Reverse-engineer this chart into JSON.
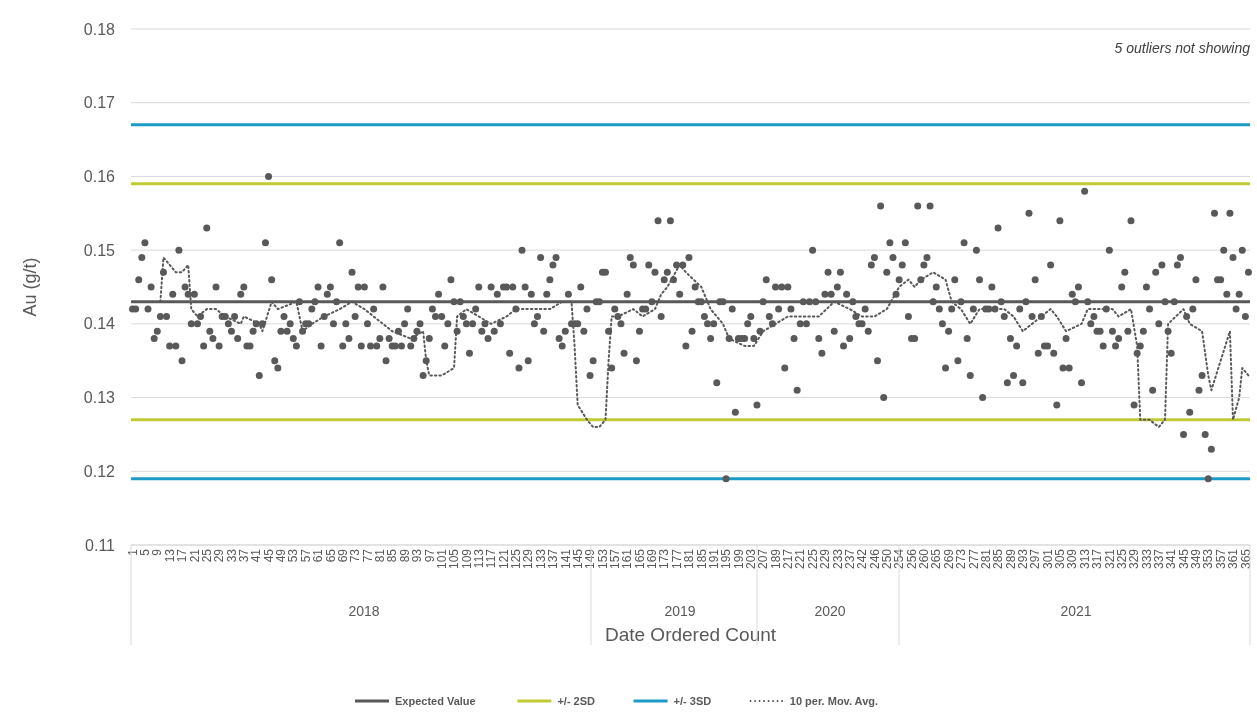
{
  "chart_data": {
    "type": "scatter",
    "xlabel": "Date Ordered Count",
    "ylabel": "Au (g/t)",
    "annotations": [
      "5 outliers not showing",
      "2018",
      "2019",
      "2020",
      "2021"
    ],
    "ylim": [
      0.11,
      0.18
    ],
    "yticks": [
      0.11,
      0.12,
      0.13,
      0.14,
      0.15,
      0.16,
      0.17,
      0.18
    ],
    "grid": "y",
    "legend": "bottom",
    "categories": [
      "1",
      null,
      null,
      null,
      "5",
      null,
      null,
      null,
      "9",
      null,
      null,
      null,
      "13",
      null,
      null,
      null,
      "17",
      null,
      null,
      null,
      "21",
      null,
      null,
      null,
      "25",
      null,
      null,
      null,
      "29",
      null,
      null,
      null,
      "33",
      null,
      null,
      null,
      "37",
      null,
      null,
      null,
      "41",
      null,
      null,
      null,
      "45",
      null,
      null,
      null,
      "49",
      null,
      null,
      null,
      "53",
      null,
      null,
      null,
      "57",
      null,
      null,
      null,
      "61",
      null,
      null,
      null,
      "65",
      null,
      null,
      null,
      "69",
      null,
      null,
      null,
      "73",
      null,
      null,
      null,
      "77",
      null,
      null,
      null,
      "81",
      null,
      null,
      null,
      "85",
      null,
      null,
      null,
      "89",
      null,
      null,
      null,
      "93",
      null,
      null,
      null,
      "97",
      null,
      null,
      null,
      "101",
      null,
      null,
      null,
      "105",
      null,
      null,
      null,
      "109",
      null,
      null,
      null,
      "113",
      null,
      null,
      null,
      "117",
      null,
      null,
      null,
      "121",
      null,
      null,
      null,
      "125",
      null,
      null,
      null,
      "129",
      null,
      null,
      null,
      "133",
      null,
      null,
      null,
      "137",
      null,
      null,
      null,
      "141",
      null,
      null,
      null,
      "145",
      null,
      null,
      null,
      "149",
      null,
      null,
      null,
      "153",
      null,
      null,
      null,
      "157",
      null,
      null,
      null,
      "161",
      null,
      null,
      null,
      "165",
      null,
      null,
      null,
      "169",
      null,
      null,
      null,
      "173",
      null,
      null,
      null,
      "177",
      null,
      null,
      null,
      "181",
      null,
      null,
      null,
      "185",
      null,
      null,
      null,
      "191",
      null,
      null,
      null,
      "195",
      null,
      null,
      null,
      "199",
      null,
      null,
      null,
      "203",
      null,
      null,
      null,
      "207",
      null,
      null,
      null,
      "189",
      null,
      null,
      null,
      "217",
      null,
      null,
      null,
      "221",
      null,
      null,
      null,
      "225",
      null,
      null,
      null,
      "229",
      null,
      null,
      null,
      "233",
      null,
      null,
      null,
      "237",
      null,
      null,
      null,
      "242",
      null,
      null,
      null,
      "246",
      null,
      null,
      null,
      "250",
      null,
      null,
      null,
      "254",
      null,
      null,
      null,
      "256",
      null,
      null,
      null,
      "260",
      null,
      null,
      null,
      "265",
      null,
      null,
      null,
      "269",
      null,
      null,
      null,
      "273",
      null,
      null,
      null,
      "277",
      null,
      null,
      null,
      "281",
      null,
      null,
      null,
      "285",
      null,
      null,
      null,
      "289",
      null,
      null,
      null,
      "293",
      null,
      null,
      null,
      "297",
      null,
      null,
      null,
      "301",
      null,
      null,
      null,
      "305",
      null,
      null,
      null,
      "309",
      null,
      null,
      null,
      "313",
      null,
      null,
      null,
      "317",
      null,
      null,
      null,
      "321",
      null,
      null,
      null,
      "325",
      null,
      null,
      null,
      "329",
      null,
      null,
      null,
      "333",
      null,
      null,
      null,
      "337",
      null,
      null,
      null,
      "341",
      null,
      null,
      null,
      "345",
      null,
      null,
      null,
      "349",
      null,
      null,
      null,
      "353",
      null,
      null,
      null,
      "357",
      null,
      null,
      null,
      "361",
      null,
      null,
      null,
      "365",
      null
    ],
    "ref_lines": [
      {
        "axis": "y",
        "value": 0.143,
        "label": "Expected Value",
        "color": "#595959"
      },
      {
        "axis": "y",
        "value": 0.159,
        "label": "+/- 2SD",
        "color": "#bfca35"
      },
      {
        "axis": "y",
        "value": 0.127,
        "color": "#bfca35"
      },
      {
        "axis": "y",
        "value": 0.167,
        "label": "+/- 3SD",
        "color": "#1d9bc6"
      },
      {
        "axis": "y",
        "value": 0.119,
        "color": "#1d9bc6"
      }
    ],
    "series": [
      {
        "color": "#595959",
        "marker": "circle",
        "values": [
          0.142,
          0.142,
          0.146,
          0.149,
          0.151,
          0.142,
          0.145,
          0.138,
          0.139,
          0.141,
          0.147,
          0.141,
          0.137,
          0.144,
          0.137,
          0.15,
          0.135,
          0.145,
          0.144,
          0.14,
          0.144,
          0.14,
          0.141,
          0.137,
          0.153,
          0.139,
          0.138,
          0.145,
          0.137,
          0.141,
          0.141,
          0.14,
          0.139,
          0.141,
          0.138,
          0.144,
          0.145,
          0.137,
          0.137,
          0.139,
          0.14,
          0.133,
          0.14,
          0.151,
          0.16,
          0.146,
          0.135,
          0.134,
          0.139,
          0.141,
          0.139,
          0.14,
          0.138,
          0.137,
          0.143,
          0.139,
          0.14,
          0.14,
          0.142,
          0.143,
          0.145,
          0.137,
          0.141,
          0.144,
          0.145,
          0.14,
          0.143,
          0.151,
          0.137,
          0.14,
          0.138,
          0.147,
          0.141,
          0.145,
          0.137,
          0.145,
          0.14,
          0.137,
          0.142,
          0.137,
          0.138,
          0.145,
          0.135,
          0.138,
          0.137,
          0.137,
          0.139,
          0.137,
          0.14,
          0.142,
          0.137,
          0.138,
          0.139,
          0.14,
          0.133,
          0.135,
          0.138,
          0.142,
          0.141,
          0.144,
          0.141,
          0.137,
          0.14,
          0.146,
          0.143,
          0.139,
          0.143,
          0.141,
          0.14,
          0.136,
          0.14,
          0.142,
          0.145,
          0.139,
          0.14,
          0.138,
          0.145,
          0.139,
          0.144,
          0.14,
          0.145,
          0.145,
          0.136,
          0.145,
          0.142,
          0.134,
          0.15,
          0.145,
          0.135,
          0.144,
          0.14,
          0.141,
          0.149,
          0.139,
          0.144,
          0.146,
          0.148,
          0.149,
          0.138,
          0.137,
          0.139,
          0.144,
          0.14,
          0.14,
          0.14,
          0.145,
          0.139,
          0.142,
          0.133,
          0.135,
          0.143,
          0.143,
          0.147,
          0.147,
          0.139,
          0.134,
          0.142,
          0.141,
          0.14,
          0.136,
          0.144,
          0.149,
          0.148,
          0.135,
          0.139,
          0.142,
          0.142,
          0.148,
          0.143,
          0.147,
          0.154,
          0.141,
          0.146,
          0.147,
          0.154,
          0.146,
          0.148,
          0.144,
          0.148,
          0.137,
          0.149,
          0.139,
          0.145,
          0.143,
          0.143,
          0.141,
          0.14,
          0.138,
          0.14,
          0.132,
          0.143,
          0.143,
          0.119,
          0.138,
          0.142,
          0.128,
          0.138,
          0.138,
          0.138,
          0.14,
          0.141,
          0.138,
          0.129,
          0.139,
          0.143,
          0.146,
          0.141,
          0.14,
          0.145,
          0.142,
          0.145,
          0.134,
          0.145,
          0.142,
          0.138,
          0.131,
          0.14,
          0.143,
          0.14,
          0.143,
          0.15,
          0.143,
          0.138,
          0.136,
          0.144,
          0.147,
          0.144,
          0.139,
          0.145,
          0.147,
          0.137,
          0.144,
          0.138,
          0.143,
          0.141,
          0.14,
          0.14,
          0.142,
          0.139,
          0.148,
          0.149,
          0.135,
          0.156,
          0.13,
          0.147,
          0.151,
          0.149,
          0.144,
          0.146,
          0.148,
          0.151,
          0.141,
          0.138,
          0.138,
          0.156,
          0.146,
          0.148,
          0.149,
          0.156,
          0.143,
          0.145,
          0.142,
          0.14,
          0.134,
          0.139,
          0.142,
          0.146,
          0.135,
          0.143,
          0.151,
          0.138,
          0.133,
          0.142,
          0.15,
          0.146,
          0.13,
          0.142,
          0.142,
          0.145,
          0.142,
          0.153,
          0.143,
          0.141,
          0.132,
          0.138,
          0.133,
          0.137,
          0.142,
          0.132,
          0.143,
          0.155,
          0.141,
          0.146,
          0.136,
          0.141,
          0.137,
          0.137,
          0.148,
          0.136,
          0.129,
          0.154,
          0.134,
          0.138,
          0.134,
          0.144,
          0.143,
          0.145,
          0.132,
          0.158,
          0.143,
          0.14,
          0.141,
          0.139,
          0.139,
          0.137,
          0.142,
          0.15,
          0.139,
          0.137,
          0.138,
          0.145,
          0.147,
          0.139,
          0.154,
          0.129,
          0.136,
          0.137,
          0.139,
          0.145,
          0.142,
          0.131,
          0.147,
          0.14,
          0.148,
          0.143,
          0.139,
          0.136,
          0.143,
          0.148,
          0.149,
          0.125,
          0.141,
          0.128,
          0.142,
          0.146,
          0.131,
          0.133,
          0.125,
          0.119,
          0.123,
          0.155,
          0.146,
          0.146,
          0.15,
          0.144,
          0.155,
          0.149,
          0.142,
          0.144,
          0.15,
          0.141,
          0.147
        ]
      },
      {
        "type": "line",
        "name": "10 per. Mov. Avg.",
        "color": "#595959",
        "line_style": "dotted",
        "values": [
          null,
          null,
          null,
          null,
          null,
          null,
          null,
          null,
          null,
          0.143,
          0.149,
          null,
          null,
          null,
          0.147,
          null,
          0.147,
          null,
          0.148,
          0.142,
          null,
          0.141,
          null,
          null,
          0.142,
          null,
          null,
          0.142,
          null,
          null,
          0.141,
          null,
          null,
          null,
          null,
          0.14,
          0.141,
          null,
          null,
          null,
          null,
          0.14,
          0.139,
          null,
          null,
          0.143,
          null,
          0.142,
          null,
          null,
          null,
          null,
          null,
          0.143,
          null,
          0.139,
          null,
          null,
          0.14,
          null,
          null,
          null,
          0.141,
          null,
          null,
          null,
          null,
          0.142,
          null,
          null,
          null,
          0.143,
          null,
          null,
          null,
          0.142,
          null,
          null,
          0.141,
          null,
          null,
          null,
          null,
          null,
          0.139,
          null,
          null,
          null,
          null,
          null,
          0.138,
          null,
          null,
          null,
          0.139,
          0.135,
          0.133,
          null,
          null,
          null,
          0.133,
          null,
          null,
          null,
          0.134,
          0.141,
          null,
          null,
          0.142,
          null,
          null,
          null,
          0.141,
          null,
          null,
          null,
          0.14,
          null,
          null,
          null,
          null,
          0.141,
          null,
          null,
          0.142,
          null,
          null,
          null,
          null,
          0.142,
          null,
          null,
          null,
          null,
          null,
          0.142,
          null,
          null,
          null,
          0.143,
          null,
          null,
          0.143,
          0.137,
          0.129,
          null,
          null,
          0.127,
          null,
          0.126,
          null,
          0.126,
          null,
          0.127,
          0.135,
          0.141,
          null,
          0.141,
          null,
          null,
          null,
          null,
          0.142,
          null,
          null,
          0.141,
          null,
          null,
          null,
          0.142,
          null,
          0.144,
          null,
          0.145,
          null,
          null,
          null,
          0.148,
          null,
          0.147,
          null,
          null,
          null,
          null,
          0.145,
          null,
          null,
          0.142,
          null,
          0.141,
          null,
          0.14,
          null,
          0.138,
          null,
          null,
          null,
          null,
          0.137,
          null,
          null,
          0.137,
          null,
          null,
          0.139,
          null,
          null,
          null,
          0.14,
          null,
          null,
          null,
          0.141,
          null,
          null,
          0.141,
          null,
          null,
          null,
          null,
          null,
          null,
          0.141,
          null,
          null,
          null,
          null,
          0.143,
          null,
          null,
          null,
          null,
          0.142,
          null,
          null,
          null,
          0.141,
          null,
          null,
          null,
          0.141,
          null,
          null,
          null,
          0.142,
          null,
          null,
          null,
          0.145,
          null,
          null,
          0.146,
          null,
          0.145,
          null,
          0.146,
          null,
          null,
          null,
          0.147,
          null,
          null,
          null,
          0.146,
          null,
          0.143,
          null,
          null,
          0.142,
          null,
          null,
          0.14,
          null,
          null,
          0.142,
          null,
          null,
          null,
          null,
          0.142,
          null,
          null,
          0.142,
          null,
          null,
          0.141,
          null,
          null,
          0.139,
          null,
          null,
          0.14,
          null,
          null,
          null,
          null,
          null,
          0.142,
          null,
          0.141,
          null,
          null,
          0.139,
          null,
          null,
          null,
          null,
          0.14,
          null,
          0.142,
          null,
          null,
          null,
          0.142,
          null,
          null,
          null,
          0.142,
          null,
          0.141,
          null,
          null,
          null,
          0.142,
          null,
          0.137,
          0.127,
          null,
          null,
          0.127,
          null,
          null,
          0.126,
          null,
          0.127,
          0.14,
          null,
          null,
          null,
          null,
          0.142,
          null,
          0.14,
          null,
          null,
          null,
          0.139,
          null,
          0.133,
          0.131,
          null,
          null,
          0.135,
          null,
          null,
          0.139,
          0.127,
          null,
          0.13,
          0.134,
          null,
          0.133
        ]
      }
    ]
  }
}
